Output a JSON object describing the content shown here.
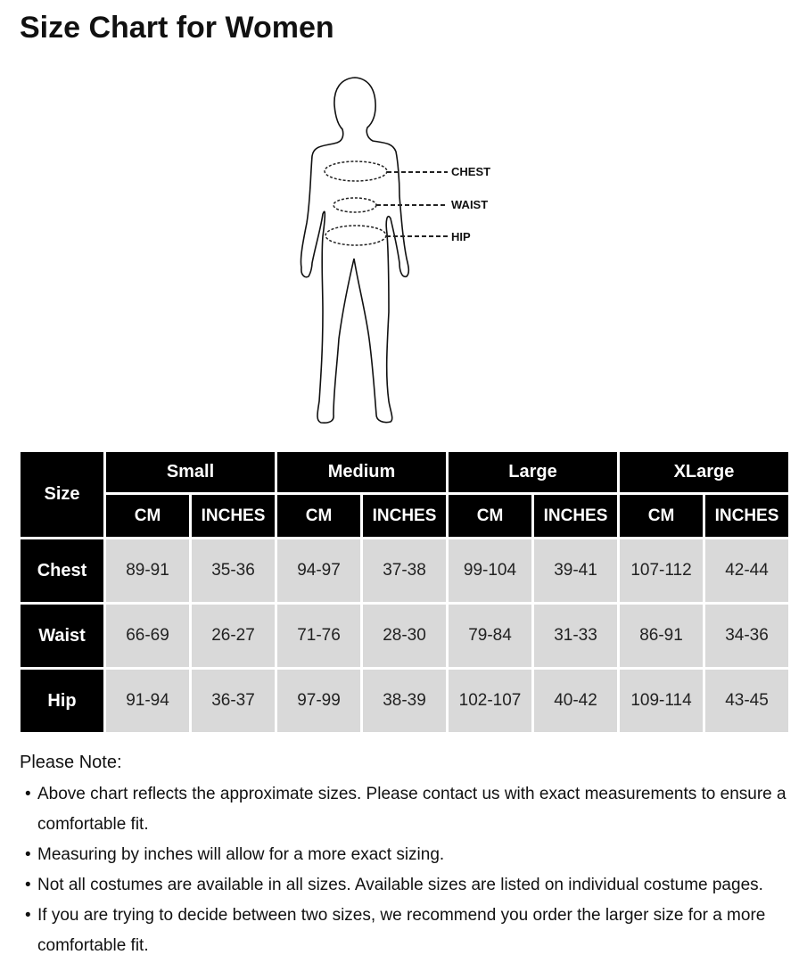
{
  "title": "Size Chart for Women",
  "figure": {
    "labels": [
      "CHEST",
      "WAIST",
      "HIP"
    ]
  },
  "table": {
    "corner": "Size",
    "sizes": [
      "Small",
      "Medium",
      "Large",
      "XLarge"
    ],
    "units": [
      "CM",
      "INCHES"
    ],
    "rows": [
      {
        "label": "Chest",
        "values": [
          "89-91",
          "35-36",
          "94-97",
          "37-38",
          "99-104",
          "39-41",
          "107-112",
          "42-44"
        ]
      },
      {
        "label": "Waist",
        "values": [
          "66-69",
          "26-27",
          "71-76",
          "28-30",
          "79-84",
          "31-33",
          "86-91",
          "34-36"
        ]
      },
      {
        "label": "Hip",
        "values": [
          "91-94",
          "36-37",
          "97-99",
          "38-39",
          "102-107",
          "40-42",
          "109-114",
          "43-45"
        ]
      }
    ]
  },
  "notes": {
    "title": "Please Note:",
    "bullet": "•",
    "items": [
      "Above chart reflects the approximate sizes. Please contact us with exact measurements to ensure a comfortable fit.",
      "Measuring by inches will allow for a more exact sizing.",
      "Not all costumes are available in all sizes. Available sizes are listed on individual costume pages.",
      "If you are trying to decide between two sizes, we recommend you order the larger size for a more comfortable fit."
    ]
  }
}
